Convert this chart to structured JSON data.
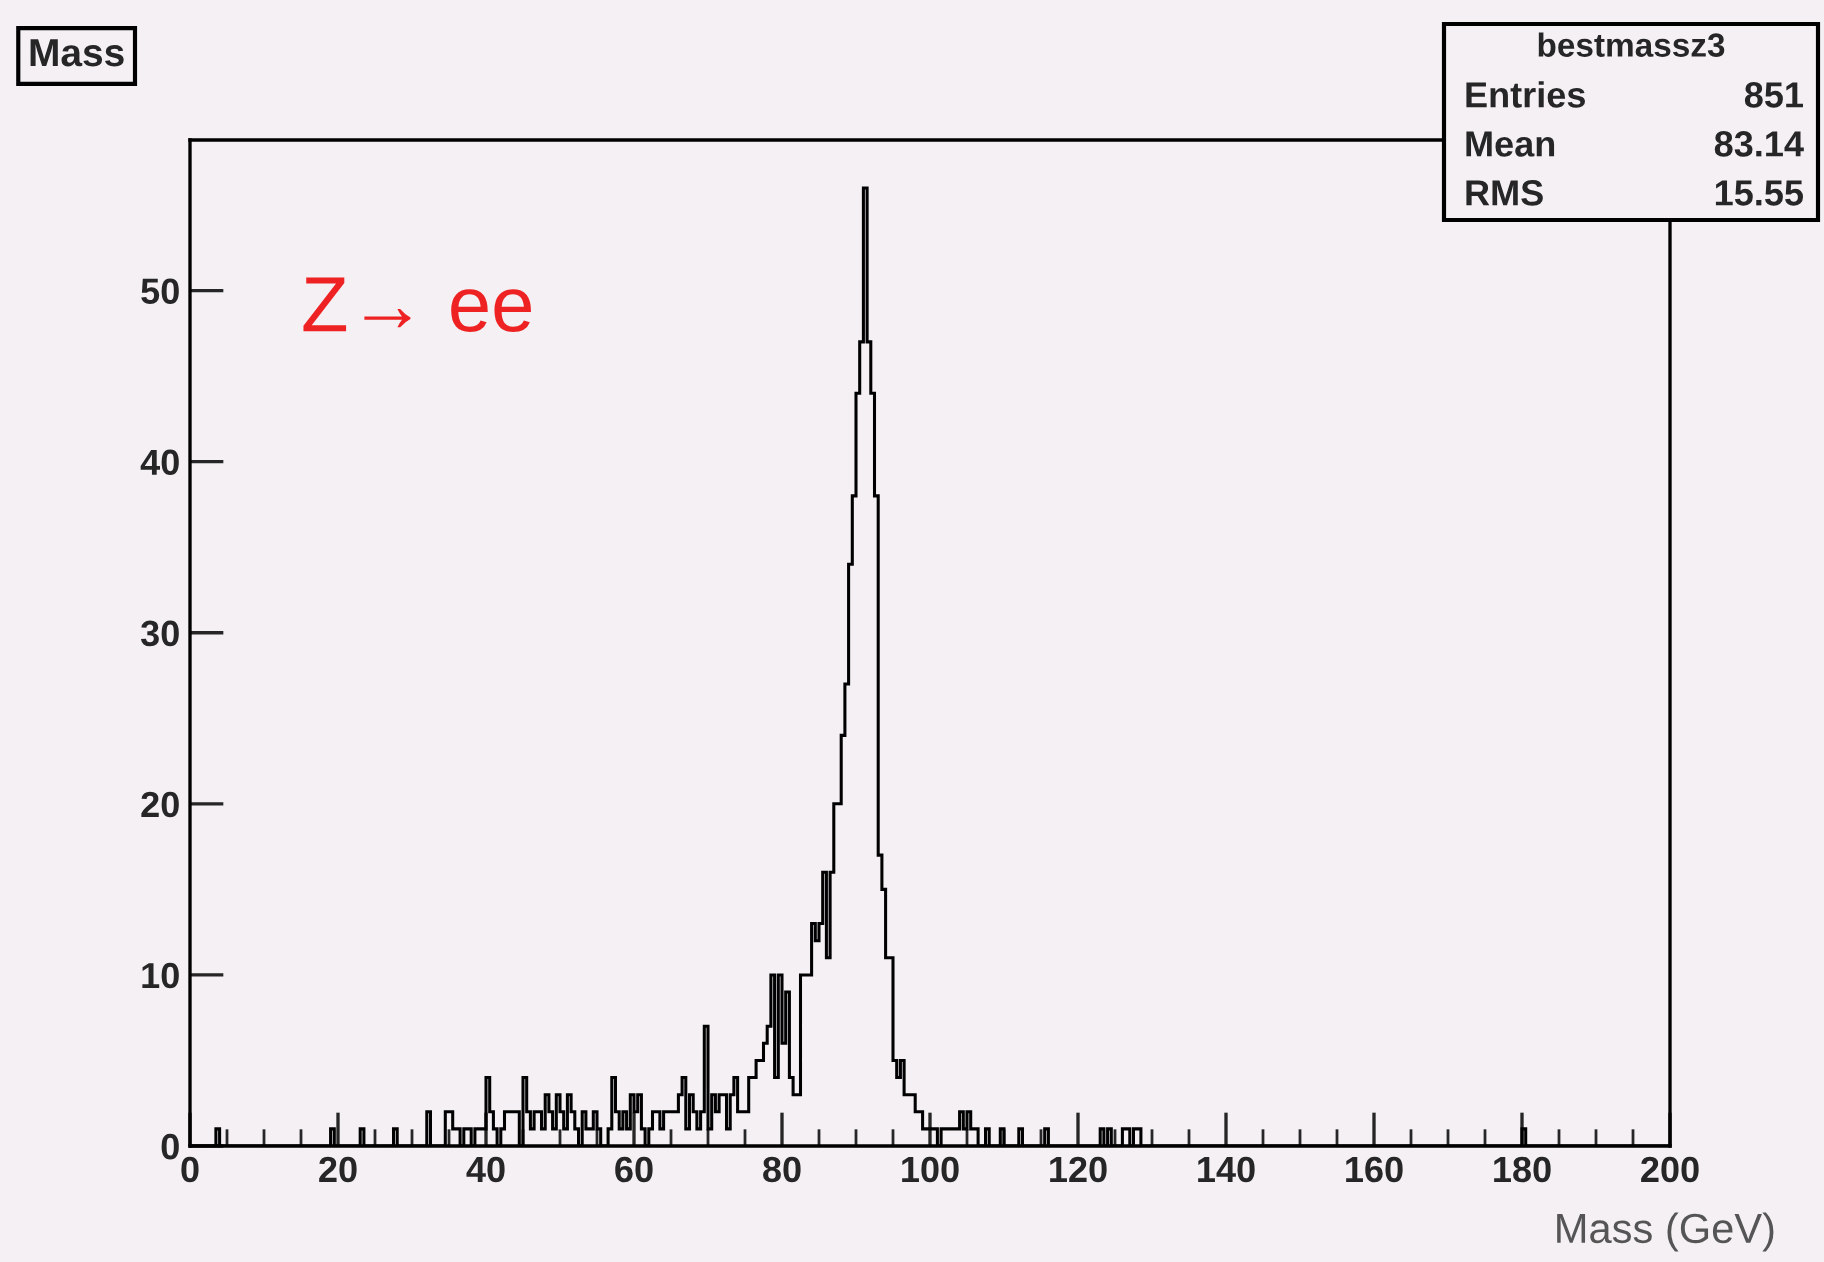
{
  "chart_data": {
    "type": "histogram",
    "title": "Mass",
    "xlabel": "Mass (GeV)",
    "color": "#000000",
    "bins": [
      0,
      0.5,
      1,
      1.5,
      2,
      2.5,
      3,
      3.5,
      4,
      4.5,
      5,
      5.5,
      6,
      6.5,
      7,
      7.5,
      8,
      8.5,
      9,
      9.5,
      10,
      10.5,
      11,
      11.5,
      12,
      12.5,
      13,
      13.5,
      14,
      14.5,
      15,
      15.5,
      16,
      16.5,
      17,
      17.5,
      18,
      18.5,
      19,
      19.5,
      20,
      20.5,
      21,
      21.5,
      22,
      22.5,
      23,
      23.5,
      24,
      24.5,
      25,
      25.5,
      26,
      26.5,
      27,
      27.5,
      28,
      28.5,
      29,
      29.5,
      30,
      30.5,
      31,
      31.5,
      32,
      32.5,
      33,
      33.5,
      34,
      34.5,
      35,
      35.5,
      36,
      36.5,
      37,
      37.5,
      38,
      38.5,
      39,
      39.5,
      40,
      40.5,
      41,
      41.5,
      42,
      42.5,
      43,
      43.5,
      44,
      44.5,
      45,
      45.5,
      46,
      46.5,
      47,
      47.5,
      48,
      48.5,
      49,
      49.5,
      50,
      50.5,
      51,
      51.5,
      52,
      52.5,
      53,
      53.5,
      54,
      54.5,
      55,
      55.5,
      56,
      56.5,
      57,
      57.5,
      58,
      58.5,
      59,
      59.5,
      60,
      60.5,
      61,
      61.5,
      62,
      62.5,
      63,
      63.5,
      64,
      64.5,
      65,
      65.5,
      66,
      66.5,
      67,
      67.5,
      68,
      68.5,
      69,
      69.5,
      70,
      70.5,
      71,
      71.5,
      72,
      72.5,
      73,
      73.5,
      74,
      74.5,
      75,
      75.5,
      76,
      76.5,
      77,
      77.5,
      78,
      78.5,
      79,
      79.5,
      80,
      80.5,
      81,
      81.5,
      82,
      82.5,
      83,
      83.5,
      84,
      84.5,
      85,
      85.5,
      86,
      86.5,
      87,
      87.5,
      88,
      88.5,
      89,
      89.5,
      90,
      90.5,
      91,
      91.5,
      92,
      92.5,
      93,
      93.5,
      94,
      94.5,
      95,
      95.5,
      96,
      96.5,
      97,
      97.5,
      98,
      98.5,
      99,
      99.5,
      100,
      100.5,
      101,
      101.5,
      102,
      102.5,
      103,
      103.5,
      104,
      104.5,
      105,
      105.5,
      106,
      106.5,
      107,
      107.5,
      108,
      108.5,
      109,
      109.5,
      110,
      110.5,
      111,
      111.5,
      112,
      112.5,
      113,
      113.5,
      114,
      114.5,
      115,
      115.5,
      116,
      116.5,
      117,
      117.5,
      118,
      118.5,
      119,
      119.5,
      120,
      120.5,
      121,
      121.5,
      122,
      122.5,
      123,
      123.5,
      124,
      124.5,
      125,
      125.5,
      126,
      126.5,
      127,
      127.5,
      128,
      128.5,
      129,
      129.5,
      130,
      130.5,
      131,
      131.5,
      132,
      132.5,
      133,
      133.5,
      134,
      134.5,
      135,
      135.5,
      136,
      136.5,
      137,
      137.5,
      138,
      138.5,
      139,
      139.5,
      140,
      140.5,
      141,
      141.5,
      142,
      142.5,
      143,
      143.5,
      144,
      144.5,
      145,
      145.5,
      146,
      146.5,
      147,
      147.5,
      148,
      148.5,
      149,
      149.5,
      150,
      150.5,
      151,
      151.5,
      152,
      152.5,
      153,
      153.5,
      154,
      154.5,
      155,
      155.5,
      156,
      156.5,
      157,
      157.5,
      158,
      158.5,
      159,
      159.5,
      160,
      160.5,
      161,
      161.5,
      162,
      162.5,
      163,
      163.5,
      164,
      164.5,
      165,
      165.5,
      166,
      166.5,
      167,
      167.5,
      168,
      168.5,
      169,
      169.5,
      170,
      170.5,
      171,
      171.5,
      172,
      172.5,
      173,
      173.5,
      174,
      174.5,
      175,
      175.5,
      176,
      176.5,
      177,
      177.5,
      178,
      178.5,
      179,
      179.5,
      180,
      180.5,
      181,
      181.5,
      182,
      182.5,
      183,
      183.5,
      184,
      184.5,
      185,
      185.5,
      186,
      186.5,
      187,
      187.5,
      188,
      188.5,
      189,
      189.5,
      190,
      190.5,
      191,
      191.5,
      192,
      192.5,
      193,
      193.5,
      194,
      194.5,
      195,
      195.5,
      196,
      196.5,
      197,
      197.5,
      198,
      198.5,
      199,
      199.5,
      200
    ],
    "values": [
      0,
      0,
      0,
      0,
      0,
      0,
      0,
      1,
      0,
      0,
      0,
      0,
      0,
      0,
      0,
      0,
      0,
      0,
      0,
      0,
      0,
      0,
      0,
      0,
      0,
      0,
      0,
      0,
      0,
      0,
      0,
      0,
      0,
      0,
      0,
      0,
      0,
      0,
      1,
      0,
      0,
      0,
      0,
      0,
      0,
      0,
      1,
      0,
      0,
      0,
      0,
      0,
      0,
      0,
      0,
      1,
      0,
      0,
      0,
      0,
      0,
      0,
      0,
      0,
      2,
      0,
      0,
      0,
      0,
      2,
      2,
      1,
      1,
      0,
      1,
      1,
      0,
      1,
      1,
      1,
      4,
      2,
      1,
      0,
      1,
      2,
      2,
      2,
      2,
      0,
      4,
      2,
      1,
      2,
      2,
      1,
      3,
      2,
      1,
      3,
      2,
      1,
      3,
      2,
      1,
      0,
      2,
      1,
      1,
      2,
      1,
      0,
      0,
      1,
      4,
      2,
      1,
      2,
      1,
      3,
      2,
      3,
      1,
      0,
      1,
      2,
      2,
      1,
      2,
      2,
      2,
      2,
      3,
      4,
      1,
      3,
      2,
      1,
      2,
      7,
      1,
      3,
      2,
      3,
      3,
      1,
      3,
      4,
      2,
      2,
      2,
      4,
      4,
      5,
      5,
      6,
      7,
      10,
      4,
      10,
      6,
      9,
      4,
      3,
      3,
      10,
      10,
      10,
      13,
      12,
      13,
      16,
      11,
      16,
      20,
      20,
      24,
      27,
      34,
      38,
      44,
      47,
      56,
      47,
      44,
      38,
      17,
      15,
      11,
      11,
      5,
      4,
      5,
      3,
      3,
      3,
      2,
      2,
      1,
      1,
      1,
      1,
      0,
      1,
      1,
      1,
      1,
      1,
      2,
      1,
      2,
      1,
      1,
      0,
      0,
      1,
      0,
      0,
      0,
      1,
      0,
      0,
      0,
      0,
      1,
      0,
      0,
      0,
      0,
      0,
      0,
      1,
      0,
      0,
      0,
      0,
      0,
      0,
      0,
      0,
      0,
      0,
      0,
      0,
      0,
      0,
      1,
      0,
      1,
      0,
      0,
      0,
      1,
      1,
      0,
      1,
      1,
      0,
      0,
      0,
      0,
      0,
      0,
      0,
      0,
      0,
      0,
      0,
      0,
      0,
      0,
      0,
      0,
      0,
      0,
      0,
      0,
      0,
      0,
      0,
      0,
      0,
      0,
      0,
      0,
      0,
      0,
      0,
      0,
      0,
      0,
      0,
      0,
      0,
      0,
      0,
      0,
      0,
      0,
      0,
      0,
      0,
      0,
      0,
      0,
      0,
      0,
      0,
      0,
      0,
      0,
      0,
      0,
      0,
      0,
      0,
      0,
      0,
      0,
      0,
      0,
      0,
      0,
      0,
      0,
      0,
      0,
      0,
      0,
      0,
      0,
      0,
      0,
      0,
      0,
      0,
      0,
      0,
      0,
      0,
      0,
      0,
      0,
      0,
      0,
      0,
      0,
      0,
      0,
      0,
      0,
      0,
      0,
      0,
      0,
      0,
      0,
      0,
      0,
      0,
      1,
      0,
      0,
      0,
      0,
      0,
      0,
      0,
      0,
      0,
      0,
      0,
      0,
      0,
      0,
      0,
      0,
      0,
      0,
      0,
      0,
      0,
      0,
      0,
      0,
      0,
      0,
      0,
      0,
      0,
      0,
      0,
      0,
      0,
      0,
      0,
      0,
      0,
      0,
      0
    ],
    "xlim": [
      0,
      200
    ],
    "ylim": [
      0,
      58.8
    ],
    "xticks": [
      0,
      20,
      40,
      60,
      80,
      100,
      120,
      140,
      160,
      180,
      200
    ],
    "yticks": [
      0,
      10,
      20,
      30,
      40,
      50
    ],
    "annotations": [
      "Z→ ee",
      "bestmassz3",
      "Entries",
      "851",
      "Mean",
      "83.14",
      "RMS",
      "15.55"
    ]
  }
}
